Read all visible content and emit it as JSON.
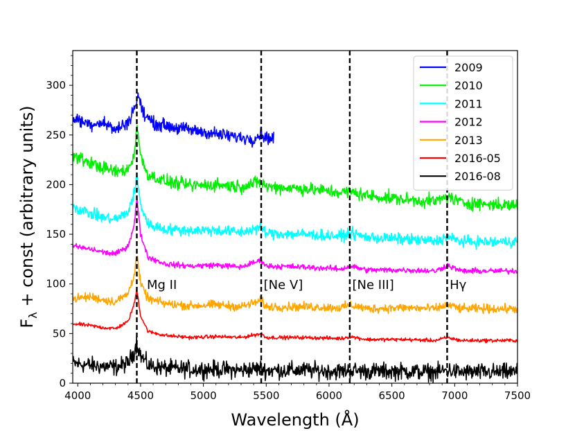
{
  "chart_data": {
    "type": "line",
    "title": "",
    "xlabel": "Wavelength (Å)",
    "ylabel_main": "F",
    "ylabel_sub": "λ",
    "ylabel_rest": " + const (arbitrary units)",
    "xlim": [
      3960,
      7500
    ],
    "ylim": [
      0,
      335
    ],
    "xticks": [
      4000,
      4500,
      5000,
      5500,
      6000,
      6500,
      7000,
      7500
    ],
    "yticks": [
      0,
      50,
      100,
      150,
      200,
      250,
      300
    ],
    "legend_position": "top-right",
    "vlines": [
      4470,
      5460,
      6165,
      6940
    ],
    "annotations": [
      {
        "text": "Mg II",
        "x": 4550,
        "y": 99
      },
      {
        "text": "[Ne V]",
        "x": 5480,
        "y": 99
      },
      {
        "text": "[Ne III]",
        "x": 6185,
        "y": 99
      },
      {
        "text": "Hγ",
        "x": 6960,
        "y": 99
      }
    ],
    "series": [
      {
        "name": "2009",
        "color": "#0000ff",
        "noise": 3.2,
        "x": [
          3960,
          4100,
          4200,
          4300,
          4400,
          4460,
          4480,
          4520,
          4600,
          4800,
          5000,
          5200,
          5400,
          5460,
          5500,
          5560
        ],
        "y": [
          267,
          261,
          263,
          255,
          263,
          280,
          290,
          272,
          262,
          257,
          253,
          249,
          246,
          252,
          247,
          247
        ]
      },
      {
        "name": "2010",
        "color": "#00ee00",
        "noise": 3.2,
        "x": [
          3960,
          4100,
          4200,
          4300,
          4400,
          4450,
          4470,
          4500,
          4560,
          4700,
          4900,
          5100,
          5300,
          5460,
          5500,
          5800,
          6100,
          6165,
          6300,
          6600,
          6850,
          6940,
          7050,
          7300,
          7500
        ],
        "y": [
          229,
          222,
          217,
          213,
          215,
          230,
          262,
          228,
          210,
          203,
          199,
          200,
          198,
          203,
          198,
          196,
          192,
          193,
          189,
          185,
          183,
          188,
          182,
          180,
          179
        ]
      },
      {
        "name": "2011",
        "color": "#00ffff",
        "noise": 2.8,
        "x": [
          3960,
          4100,
          4200,
          4300,
          4400,
          4450,
          4470,
          4500,
          4560,
          4700,
          4900,
          5100,
          5300,
          5460,
          5500,
          5800,
          6100,
          6165,
          6300,
          6600,
          6850,
          6940,
          7050,
          7300,
          7500
        ],
        "y": [
          178,
          171,
          167,
          165,
          172,
          192,
          208,
          180,
          160,
          155,
          154,
          154,
          152,
          157,
          151,
          150,
          148,
          151,
          147,
          145,
          143,
          147,
          143,
          142,
          143
        ]
      },
      {
        "name": "2012",
        "color": "#ff00ff",
        "noise": 1.4,
        "x": [
          3960,
          4100,
          4200,
          4300,
          4400,
          4450,
          4470,
          4500,
          4560,
          4700,
          4900,
          5100,
          5300,
          5460,
          5500,
          5800,
          6100,
          6165,
          6300,
          6600,
          6850,
          6940,
          7050,
          7300,
          7500
        ],
        "y": [
          138,
          135,
          132,
          130,
          138,
          160,
          187,
          150,
          127,
          120,
          118,
          119,
          117,
          124,
          118,
          117,
          115,
          118,
          114,
          114,
          113,
          119,
          113,
          113,
          113
        ]
      },
      {
        "name": "2013",
        "color": "#ffa500",
        "noise": 2.2,
        "x": [
          3960,
          4100,
          4200,
          4300,
          4400,
          4450,
          4470,
          4500,
          4560,
          4700,
          4900,
          5100,
          5300,
          5460,
          5500,
          5800,
          6100,
          6165,
          6300,
          6600,
          6850,
          6940,
          7050,
          7300,
          7500
        ],
        "y": [
          85,
          87,
          84,
          82,
          90,
          110,
          130,
          100,
          85,
          80,
          78,
          79,
          77,
          83,
          77,
          77,
          76,
          79,
          75,
          76,
          75,
          79,
          75,
          75,
          75
        ]
      },
      {
        "name": "2016-05",
        "color": "#ff0000",
        "noise": 0.9,
        "x": [
          3960,
          4100,
          4200,
          4300,
          4400,
          4450,
          4470,
          4500,
          4560,
          4700,
          4900,
          5100,
          5300,
          5460,
          5500,
          5800,
          6100,
          6165,
          6300,
          6600,
          6850,
          6940,
          7050,
          7300,
          7500
        ],
        "y": [
          60,
          58,
          56,
          55,
          62,
          80,
          95,
          68,
          52,
          48,
          46,
          47,
          46,
          50,
          46,
          46,
          45,
          47,
          44,
          44,
          43,
          46,
          43,
          43,
          43
        ]
      },
      {
        "name": "2016-08",
        "color": "#000000",
        "noise": 4.2,
        "x": [
          3960,
          4100,
          4200,
          4300,
          4400,
          4450,
          4470,
          4500,
          4560,
          4700,
          4900,
          5100,
          5300,
          5460,
          5500,
          5800,
          6100,
          6165,
          6300,
          6600,
          6850,
          6940,
          7050,
          7300,
          7500
        ],
        "y": [
          20,
          18,
          17,
          16,
          20,
          32,
          42,
          28,
          18,
          15,
          14,
          14,
          13,
          15,
          13,
          13,
          12,
          13,
          12,
          12,
          11,
          13,
          11,
          11,
          11
        ]
      }
    ]
  }
}
